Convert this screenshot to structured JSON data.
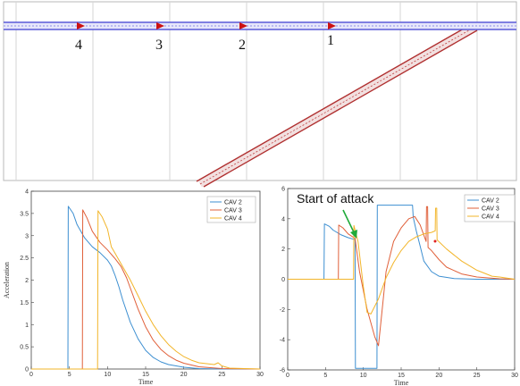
{
  "road": {
    "vehicle_labels": [
      "4",
      "3",
      "2",
      "1"
    ],
    "colors": {
      "lane": "#5a5ad8",
      "ramp": "#b03030",
      "vehicle": "#cc1111",
      "grid": "#d0d0d0"
    }
  },
  "chart_data": [
    {
      "type": "line",
      "xlabel": "Time",
      "ylabel": "Acceleration",
      "xlim": [
        0,
        30
      ],
      "ylim": [
        0,
        4
      ],
      "xticks": [
        0,
        5,
        10,
        15,
        20,
        25,
        30
      ],
      "yticks": [
        0,
        0.5,
        1,
        1.5,
        2,
        2.5,
        3,
        3.5,
        4
      ],
      "grid": false,
      "legend_position": "top-right",
      "series": [
        {
          "name": "CAV 2",
          "color": "#3d8fd1",
          "x": [
            0,
            4.8,
            4.85,
            5.5,
            6,
            7,
            8,
            9,
            10,
            10.5,
            11,
            11.5,
            12,
            13,
            14,
            15,
            16,
            17,
            18,
            20,
            22,
            25,
            30
          ],
          "y": [
            0,
            0,
            3.66,
            3.5,
            3.25,
            2.95,
            2.75,
            2.62,
            2.45,
            2.32,
            2.1,
            1.85,
            1.55,
            1.05,
            0.68,
            0.42,
            0.26,
            0.16,
            0.1,
            0.04,
            0.01,
            0,
            0
          ]
        },
        {
          "name": "CAV 3",
          "color": "#e0603a",
          "x": [
            0,
            6.7,
            6.75,
            7.3,
            8,
            9,
            10,
            11,
            11.8,
            12.5,
            13,
            14,
            15,
            16,
            17,
            18,
            19,
            20,
            22,
            25,
            30
          ],
          "y": [
            0,
            0,
            3.58,
            3.4,
            3.1,
            2.85,
            2.68,
            2.48,
            2.3,
            2.05,
            1.82,
            1.35,
            0.95,
            0.65,
            0.44,
            0.3,
            0.2,
            0.13,
            0.05,
            0.01,
            0
          ]
        },
        {
          "name": "CAV 4",
          "color": "#f2b52a",
          "x": [
            0,
            8.7,
            8.75,
            9.3,
            10,
            10.5,
            11,
            12,
            13,
            14,
            15,
            16,
            17,
            18,
            19,
            20,
            21,
            22,
            24,
            24.5,
            25,
            26,
            30
          ],
          "y": [
            0,
            0,
            3.56,
            3.42,
            3.15,
            2.75,
            2.6,
            2.3,
            2.0,
            1.65,
            1.3,
            1.0,
            0.75,
            0.55,
            0.4,
            0.28,
            0.2,
            0.14,
            0.1,
            0.14,
            0.07,
            0.02,
            0
          ]
        }
      ]
    },
    {
      "type": "line",
      "xlabel": "Time",
      "ylabel": "",
      "xlim": [
        0,
        30
      ],
      "ylim": [
        -6,
        6
      ],
      "xticks": [
        0,
        5,
        10,
        15,
        20,
        25,
        30
      ],
      "yticks": [
        -6,
        -4,
        -2,
        0,
        2,
        4,
        6
      ],
      "grid": false,
      "legend_position": "top-right",
      "annotation": {
        "text": "Start of attack",
        "x": 9,
        "y": 2.6
      },
      "series": [
        {
          "name": "CAV 2",
          "color": "#3d8fd1",
          "x": [
            0,
            4.8,
            4.85,
            5.5,
            6,
            7,
            8,
            8.9,
            8.95,
            11.8,
            11.85,
            16.5,
            16.6,
            17,
            17.5,
            18,
            19,
            20,
            22,
            25,
            30
          ],
          "y": [
            0,
            0,
            3.66,
            3.5,
            3.25,
            2.95,
            2.75,
            2.62,
            -5.9,
            -5.9,
            4.9,
            4.9,
            4.1,
            3.2,
            2.2,
            1.2,
            0.5,
            0.2,
            0.05,
            0,
            0
          ]
        },
        {
          "name": "CAV 3",
          "color": "#e0603a",
          "x": [
            0,
            6.7,
            6.75,
            7.3,
            8,
            8.9,
            9.5,
            10.5,
            11.5,
            12,
            13,
            14,
            15,
            16,
            16.8,
            17.5,
            18.3,
            18.35,
            18.5,
            18.55,
            19,
            20,
            21,
            23,
            25,
            28,
            30
          ],
          "y": [
            0,
            0,
            3.58,
            3.4,
            3.0,
            2.7,
            0.5,
            -2.0,
            -3.8,
            -4.4,
            0.5,
            2.5,
            3.4,
            4.0,
            4.15,
            3.6,
            2.5,
            4.8,
            4.8,
            2.1,
            1.9,
            1.3,
            0.8,
            0.35,
            0.15,
            0.03,
            0
          ]
        },
        {
          "name": "CAV 4",
          "color": "#f2b52a",
          "x": [
            0,
            8.7,
            8.75,
            9.3,
            10,
            10.5,
            11,
            12,
            13,
            14,
            15,
            16,
            17,
            18,
            19,
            19.5,
            19.55,
            19.7,
            19.75,
            21,
            23,
            25,
            27,
            28,
            30
          ],
          "y": [
            0,
            0,
            3.55,
            2.5,
            -0.5,
            -2.2,
            -2.3,
            -1.3,
            0.1,
            1.1,
            1.9,
            2.5,
            2.8,
            3.0,
            3.1,
            3.2,
            4.7,
            4.7,
            2.6,
            2.0,
            1.2,
            0.6,
            0.2,
            0.15,
            0
          ]
        }
      ]
    }
  ]
}
